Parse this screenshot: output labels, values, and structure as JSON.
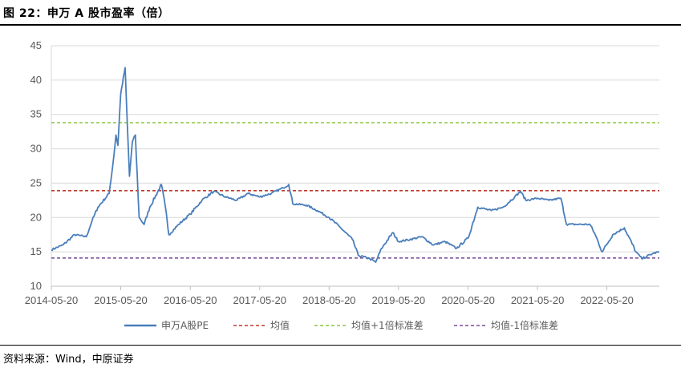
{
  "figure_title": "图 22：申万 A 股市盈率（倍）",
  "source": "资料来源：Wind，中原证券",
  "colors": {
    "pe": "#4a7ebb",
    "mean": "#c0392b",
    "plus1": "#8cc63f",
    "minus1": "#7b4f9d"
  },
  "chart_data": {
    "type": "line",
    "title": "",
    "xlabel": "",
    "ylabel": "",
    "ylim": [
      10,
      45
    ],
    "yticks": [
      "10",
      "15",
      "20",
      "25",
      "30",
      "35",
      "40",
      "45"
    ],
    "xticks": [
      "2014-05-20",
      "2015-05-20",
      "2016-05-20",
      "2017-05-20",
      "2018-05-20",
      "2019-05-20",
      "2020-05-20",
      "2021-05-20",
      "2022-05-20"
    ],
    "x_range": [
      "2014-05-20",
      "2023-02-20"
    ],
    "grid": "horizontal",
    "legend_position": "bottom",
    "series": [
      {
        "name": "申万A股PE",
        "style": "solid",
        "points": [
          [
            "2014-05-20",
            15.3
          ],
          [
            "2014-07-20",
            16.0
          ],
          [
            "2014-09-20",
            17.5
          ],
          [
            "2014-11-20",
            17.2
          ],
          [
            "2014-12-20",
            19.5
          ],
          [
            "2015-01-20",
            21.5
          ],
          [
            "2015-03-20",
            23.5
          ],
          [
            "2015-04-10",
            28.0
          ],
          [
            "2015-04-25",
            32.0
          ],
          [
            "2015-05-05",
            30.5
          ],
          [
            "2015-05-20",
            38.0
          ],
          [
            "2015-06-12",
            41.8
          ],
          [
            "2015-06-20",
            36.0
          ],
          [
            "2015-07-05",
            26.0
          ],
          [
            "2015-07-20",
            31.0
          ],
          [
            "2015-08-05",
            32.0
          ],
          [
            "2015-08-25",
            20.0
          ],
          [
            "2015-09-20",
            19.0
          ],
          [
            "2015-10-20",
            21.5
          ],
          [
            "2015-12-20",
            24.8
          ],
          [
            "2016-01-10",
            21.5
          ],
          [
            "2016-01-28",
            17.5
          ],
          [
            "2016-03-20",
            19.0
          ],
          [
            "2016-05-20",
            20.5
          ],
          [
            "2016-07-20",
            22.5
          ],
          [
            "2016-09-20",
            23.8
          ],
          [
            "2016-11-20",
            23.0
          ],
          [
            "2017-01-20",
            22.5
          ],
          [
            "2017-03-20",
            23.5
          ],
          [
            "2017-05-20",
            23.0
          ],
          [
            "2017-07-20",
            23.5
          ],
          [
            "2017-09-20",
            24.3
          ],
          [
            "2017-10-20",
            24.8
          ],
          [
            "2017-11-10",
            22.0
          ],
          [
            "2018-01-20",
            21.8
          ],
          [
            "2018-03-20",
            21.0
          ],
          [
            "2018-05-20",
            20.0
          ],
          [
            "2018-07-20",
            18.5
          ],
          [
            "2018-09-20",
            16.8
          ],
          [
            "2018-10-20",
            14.5
          ],
          [
            "2018-12-20",
            14.0
          ],
          [
            "2019-01-20",
            13.5
          ],
          [
            "2019-02-20",
            15.5
          ],
          [
            "2019-04-20",
            17.8
          ],
          [
            "2019-05-20",
            16.5
          ],
          [
            "2019-07-20",
            16.8
          ],
          [
            "2019-09-20",
            17.2
          ],
          [
            "2019-11-20",
            16.0
          ],
          [
            "2020-01-20",
            16.5
          ],
          [
            "2020-03-20",
            15.5
          ],
          [
            "2020-05-20",
            17.0
          ],
          [
            "2020-07-10",
            21.5
          ],
          [
            "2020-09-20",
            21.0
          ],
          [
            "2020-11-20",
            21.5
          ],
          [
            "2021-01-20",
            23.0
          ],
          [
            "2021-02-20",
            23.8
          ],
          [
            "2021-03-20",
            22.5
          ],
          [
            "2021-05-20",
            22.8
          ],
          [
            "2021-07-20",
            22.5
          ],
          [
            "2021-09-20",
            22.8
          ],
          [
            "2021-10-20",
            19.0
          ],
          [
            "2021-12-20",
            19.0
          ],
          [
            "2022-02-20",
            19.0
          ],
          [
            "2022-03-20",
            17.5
          ],
          [
            "2022-04-25",
            15.0
          ],
          [
            "2022-06-20",
            17.5
          ],
          [
            "2022-08-20",
            18.5
          ],
          [
            "2022-10-20",
            15.0
          ],
          [
            "2022-11-20",
            14.0
          ],
          [
            "2023-01-20",
            14.8
          ],
          [
            "2023-02-20",
            15.0
          ]
        ]
      },
      {
        "name": "均值",
        "style": "dashed",
        "value": 23.9
      },
      {
        "name": "均值+1倍标准差",
        "style": "dashed",
        "value": 33.8
      },
      {
        "name": "均值-1倍标准差",
        "style": "dashed",
        "value": 14.1
      }
    ]
  }
}
